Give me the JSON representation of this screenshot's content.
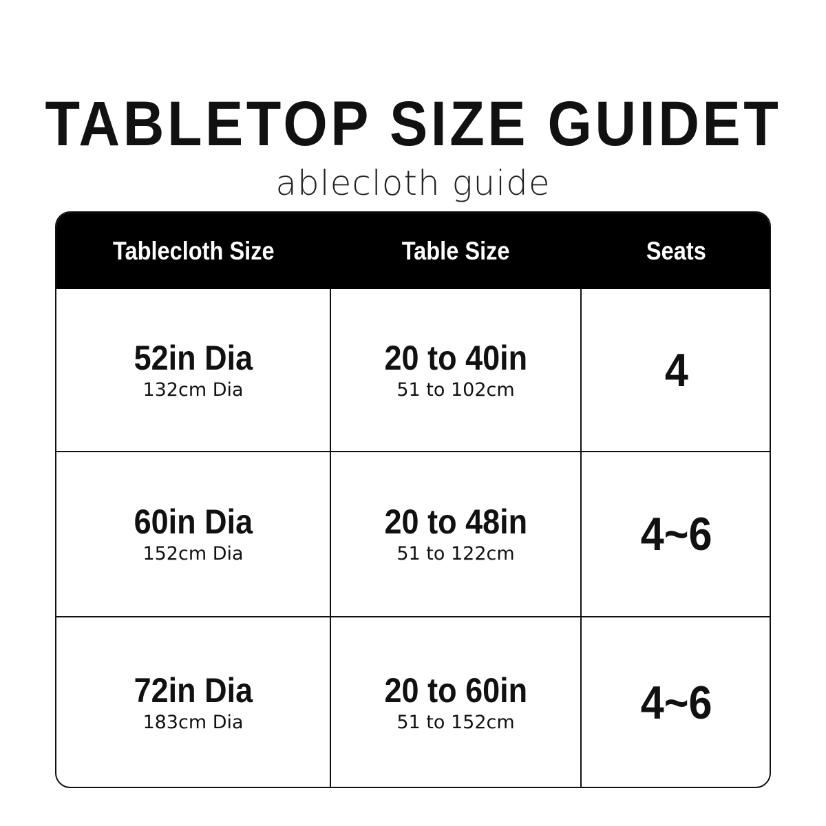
{
  "title": "TABLETOP SIZE GUIDET",
  "subtitle": "ablecloth guide",
  "table": {
    "headers": [
      "Tablecloth Size",
      "Table Size",
      "Seats"
    ],
    "rows": [
      {
        "tablecloth": "52in Dia",
        "tablecloth_cm": "132cm Dia",
        "table": "20 to 40in",
        "table_cm": "51 to 102cm",
        "seats": "4"
      },
      {
        "tablecloth": "60in Dia",
        "tablecloth_cm": "152cm Dia",
        "table": "20 to 48in",
        "table_cm": "51 to 122cm",
        "seats": "4~6"
      },
      {
        "tablecloth": "72in Dia",
        "tablecloth_cm": "183cm Dia",
        "table": "20 to 60in",
        "table_cm": "51 to 152cm",
        "seats": "4~6"
      }
    ]
  },
  "colors": {
    "header_bg": "#000000",
    "header_text": "#ffffff",
    "text": "#111111"
  }
}
